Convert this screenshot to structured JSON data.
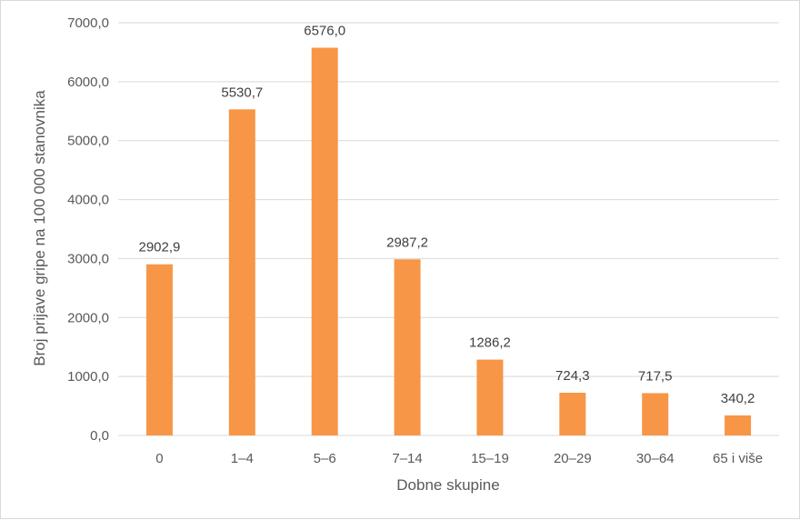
{
  "chart_data": {
    "type": "bar",
    "title": "",
    "xlabel": "Dobne skupine",
    "ylabel": "Broj prijave gripe na 100 000 stanovnika",
    "categories": [
      "0",
      "1–4",
      "5–6",
      "7–14",
      "15–19",
      "20–29",
      "30–64",
      "65 i više"
    ],
    "values": [
      2902.9,
      5530.7,
      6576.0,
      2987.2,
      1286.2,
      724.3,
      717.5,
      340.2
    ],
    "value_labels": [
      "2902,9",
      "5530,7",
      "6576,0",
      "2987,2",
      "1286,2",
      "724,3",
      "717,5",
      "340,2"
    ],
    "ylim": [
      0,
      7000
    ],
    "yticks": [
      0,
      1000,
      2000,
      3000,
      4000,
      5000,
      6000,
      7000
    ],
    "ytick_labels": [
      "0,0",
      "1000,0",
      "2000,0",
      "3000,0",
      "4000,0",
      "5000,0",
      "6000,0",
      "7000,0"
    ],
    "bar_color": "#f79646",
    "grid": true,
    "legend": "none"
  }
}
